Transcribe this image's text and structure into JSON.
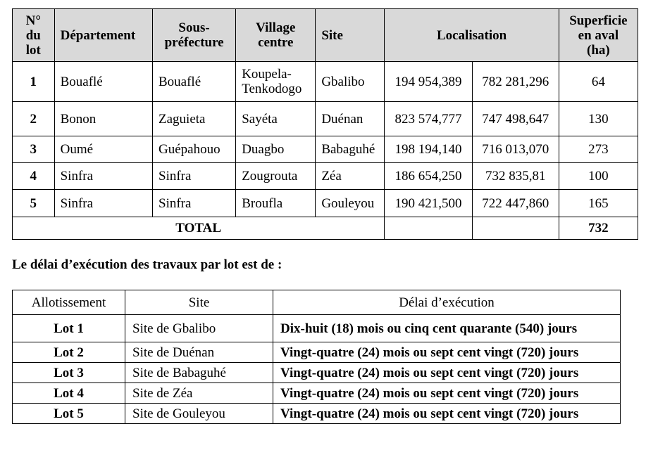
{
  "table1": {
    "headers": {
      "lot_line1": "N°",
      "lot_line2": "du",
      "lot_line3": "lot",
      "departement": "Département",
      "sous_prefecture_line1": "Sous-",
      "sous_prefecture_line2": "préfecture",
      "village_line1": "Village",
      "village_line2": "centre",
      "site": "Site",
      "localisation": "Localisation",
      "superficie_line1": "Superficie",
      "superficie_line2": "en aval",
      "superficie_line3": "(ha)"
    },
    "rows": [
      {
        "lot": "1",
        "departement": "Bouaflé",
        "sous_prefecture": "Bouaflé",
        "village_line1": "Koupela-",
        "village_line2": "Tenkodogo",
        "site": "Gbalibo",
        "x": "194 954,389",
        "y": "782 281,296",
        "superficie": "64"
      },
      {
        "lot": "2",
        "departement": "Bonon",
        "sous_prefecture": "Zaguieta",
        "village_line1": "Sayéta",
        "village_line2": "",
        "site": "Duénan",
        "x": "823 574,777",
        "y": "747 498,647",
        "superficie": "130"
      },
      {
        "lot": "3",
        "departement": "Oumé",
        "sous_prefecture": "Guépahouo",
        "village_line1": "Duagbo",
        "village_line2": "",
        "site": "Babaguhé",
        "x": "198 194,140",
        "y": "716 013,070",
        "superficie": "273"
      },
      {
        "lot": "4",
        "departement": "Sinfra",
        "sous_prefecture": "Sinfra",
        "village_line1": "Zougrouta",
        "village_line2": "",
        "site": "Zéa",
        "x": "186 654,250",
        "y": "732 835,81",
        "superficie": "100"
      },
      {
        "lot": "5",
        "departement": "Sinfra",
        "sous_prefecture": "Sinfra",
        "village_line1": "Broufla",
        "village_line2": "",
        "site": "Gouleyou",
        "x": "190 421,500",
        "y": "722 447,860",
        "superficie": "165"
      }
    ],
    "total_label": "TOTAL",
    "total_value": "732"
  },
  "paragraph": "Le délai d’exécution des travaux par lot est de :",
  "table2": {
    "headers": {
      "allotissement": "Allotissement",
      "site": "Site",
      "delai": "Délai d’exécution"
    },
    "rows": [
      {
        "lot": "Lot 1",
        "site": "Site de Gbalibo",
        "delai": "Dix-huit (18) mois ou cinq cent quarante (540) jours"
      },
      {
        "lot": "Lot 2",
        "site": "Site de Duénan",
        "delai": "Vingt-quatre (24) mois ou sept cent vingt (720) jours"
      },
      {
        "lot": "Lot 3",
        "site": "Site de Babaguhé",
        "delai": "Vingt-quatre (24) mois ou sept cent vingt (720) jours"
      },
      {
        "lot": "Lot 4",
        "site": "Site de Zéa",
        "delai": "Vingt-quatre (24) mois ou sept cent vingt (720) jours"
      },
      {
        "lot": "Lot 5",
        "site": "Site de Gouleyou",
        "delai": "Vingt-quatre (24) mois ou sept cent vingt (720) jours"
      }
    ]
  }
}
